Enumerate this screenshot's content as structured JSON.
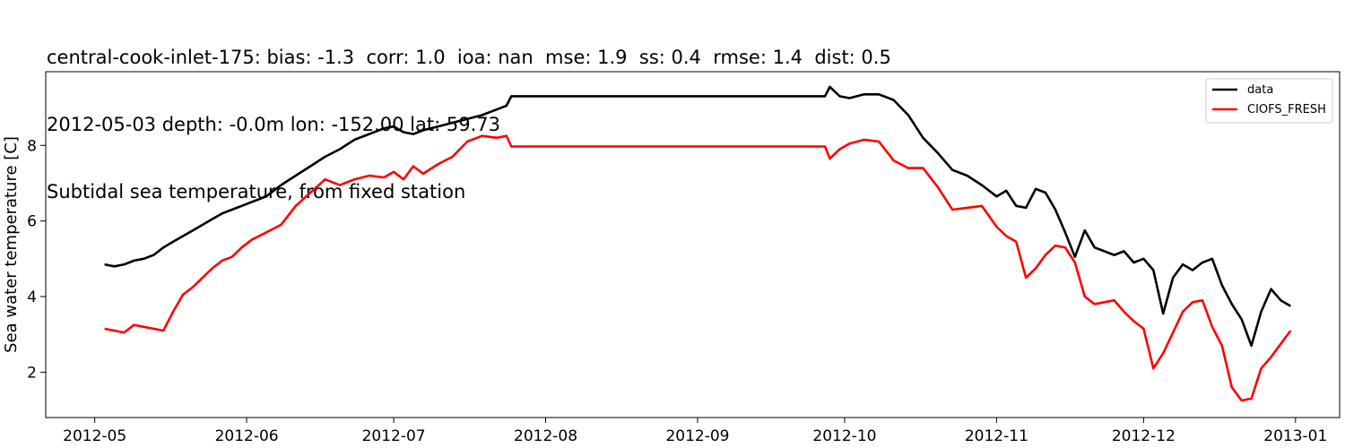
{
  "chart_data": {
    "type": "line",
    "title_lines": [
      "central-cook-inlet-175: bias: -1.3  corr: 1.0  ioa: nan  mse: 1.9  ss: 0.4  rmse: 1.4  dist: 0.5",
      "2012-05-03 depth: -0.0m lon: -152.00 lat: 59.73",
      "Subtidal sea temperature, from fixed station"
    ],
    "xlabel": "",
    "ylabel": "Sea water temperature [C]",
    "x_start": "2012-04-21",
    "x_end": "2013-01-10",
    "xlim": [
      "2012-04-21",
      "2013-01-10"
    ],
    "ylim": [
      0.8,
      9.95
    ],
    "xticks": [
      "2012-05-01",
      "2012-06-01",
      "2012-07-01",
      "2012-08-01",
      "2012-09-01",
      "2012-10-01",
      "2012-11-01",
      "2012-12-01",
      "2013-01-01"
    ],
    "xtick_labels": [
      "2012-05",
      "2012-06",
      "2012-07",
      "2012-08",
      "2012-09",
      "2012-10",
      "2012-11",
      "2012-12",
      "2013-01"
    ],
    "yticks": [
      2,
      4,
      6,
      8
    ],
    "ytick_labels": [
      "2",
      "4",
      "6",
      "8"
    ],
    "grid": false,
    "legend_position": "top-right",
    "series": [
      {
        "name": "data",
        "color": "#000000",
        "x": [
          "2012-05-03",
          "2012-05-05",
          "2012-05-07",
          "2012-05-09",
          "2012-05-11",
          "2012-05-13",
          "2012-05-15",
          "2012-05-17",
          "2012-05-19",
          "2012-05-21",
          "2012-05-23",
          "2012-05-25",
          "2012-05-27",
          "2012-05-29",
          "2012-05-31",
          "2012-06-02",
          "2012-06-05",
          "2012-06-08",
          "2012-06-11",
          "2012-06-14",
          "2012-06-17",
          "2012-06-20",
          "2012-06-23",
          "2012-06-26",
          "2012-06-29",
          "2012-07-01",
          "2012-07-03",
          "2012-07-05",
          "2012-07-07",
          "2012-07-10",
          "2012-07-13",
          "2012-07-16",
          "2012-07-19",
          "2012-07-22",
          "2012-07-24",
          "2012-07-25",
          "2012-08-10",
          "2012-09-01",
          "2012-09-20",
          "2012-09-27",
          "2012-09-28",
          "2012-09-30",
          "2012-10-02",
          "2012-10-05",
          "2012-10-08",
          "2012-10-11",
          "2012-10-14",
          "2012-10-17",
          "2012-10-20",
          "2012-10-23",
          "2012-10-26",
          "2012-10-29",
          "2012-11-01",
          "2012-11-03",
          "2012-11-05",
          "2012-11-07",
          "2012-11-09",
          "2012-11-11",
          "2012-11-13",
          "2012-11-15",
          "2012-11-17",
          "2012-11-19",
          "2012-11-21",
          "2012-11-23",
          "2012-11-25",
          "2012-11-27",
          "2012-11-29",
          "2012-12-01",
          "2012-12-03",
          "2012-12-05",
          "2012-12-07",
          "2012-12-09",
          "2012-12-11",
          "2012-12-13",
          "2012-12-15",
          "2012-12-17",
          "2012-12-19",
          "2012-12-21",
          "2012-12-23",
          "2012-12-25",
          "2012-12-27",
          "2012-12-29",
          "2012-12-31"
        ],
        "y": [
          4.85,
          4.8,
          4.85,
          4.95,
          5.0,
          5.1,
          5.3,
          5.45,
          5.6,
          5.75,
          5.9,
          6.05,
          6.2,
          6.3,
          6.4,
          6.5,
          6.65,
          6.95,
          7.2,
          7.45,
          7.7,
          7.9,
          8.15,
          8.3,
          8.45,
          8.5,
          8.35,
          8.3,
          8.4,
          8.5,
          8.6,
          8.7,
          8.8,
          8.95,
          9.05,
          9.3,
          9.3,
          9.3,
          9.3,
          9.3,
          9.55,
          9.3,
          9.25,
          9.35,
          9.35,
          9.2,
          8.8,
          8.2,
          7.8,
          7.35,
          7.2,
          6.95,
          6.65,
          6.8,
          6.4,
          6.35,
          6.85,
          6.75,
          6.3,
          5.7,
          5.05,
          5.75,
          5.3,
          5.2,
          5.1,
          5.2,
          4.9,
          5.0,
          4.7,
          3.55,
          4.5,
          4.85,
          4.7,
          4.9,
          5.0,
          4.3,
          3.8,
          3.4,
          2.7,
          3.6,
          4.2,
          3.9,
          3.75
        ]
      },
      {
        "name": "CIOFS_FRESH",
        "color": "#ff0000",
        "x": [
          "2012-05-03",
          "2012-05-05",
          "2012-05-07",
          "2012-05-09",
          "2012-05-11",
          "2012-05-13",
          "2012-05-15",
          "2012-05-17",
          "2012-05-19",
          "2012-05-21",
          "2012-05-23",
          "2012-05-25",
          "2012-05-27",
          "2012-05-29",
          "2012-05-31",
          "2012-06-02",
          "2012-06-05",
          "2012-06-08",
          "2012-06-11",
          "2012-06-14",
          "2012-06-17",
          "2012-06-20",
          "2012-06-23",
          "2012-06-26",
          "2012-06-29",
          "2012-07-01",
          "2012-07-03",
          "2012-07-05",
          "2012-07-07",
          "2012-07-10",
          "2012-07-13",
          "2012-07-16",
          "2012-07-19",
          "2012-07-22",
          "2012-07-24",
          "2012-07-25",
          "2012-08-10",
          "2012-09-01",
          "2012-09-20",
          "2012-09-27",
          "2012-09-28",
          "2012-09-30",
          "2012-10-02",
          "2012-10-05",
          "2012-10-08",
          "2012-10-11",
          "2012-10-14",
          "2012-10-17",
          "2012-10-20",
          "2012-10-23",
          "2012-10-26",
          "2012-10-29",
          "2012-11-01",
          "2012-11-03",
          "2012-11-05",
          "2012-11-07",
          "2012-11-09",
          "2012-11-11",
          "2012-11-13",
          "2012-11-15",
          "2012-11-17",
          "2012-11-19",
          "2012-11-21",
          "2012-11-23",
          "2012-11-25",
          "2012-11-27",
          "2012-11-29",
          "2012-12-01",
          "2012-12-03",
          "2012-12-05",
          "2012-12-07",
          "2012-12-09",
          "2012-12-11",
          "2012-12-13",
          "2012-12-15",
          "2012-12-17",
          "2012-12-19",
          "2012-12-21",
          "2012-12-23",
          "2012-12-25",
          "2012-12-27",
          "2012-12-29",
          "2012-12-31"
        ],
        "y": [
          3.15,
          3.1,
          3.05,
          3.25,
          3.2,
          3.15,
          3.1,
          3.6,
          4.05,
          4.25,
          4.5,
          4.75,
          4.95,
          5.05,
          5.3,
          5.5,
          5.7,
          5.9,
          6.4,
          6.75,
          7.1,
          6.95,
          7.1,
          7.2,
          7.15,
          7.3,
          7.1,
          7.45,
          7.25,
          7.5,
          7.7,
          8.1,
          8.25,
          8.2,
          8.25,
          7.97,
          7.97,
          7.97,
          7.97,
          7.97,
          7.65,
          7.9,
          8.05,
          8.15,
          8.1,
          7.6,
          7.4,
          7.4,
          6.9,
          6.3,
          6.35,
          6.4,
          5.85,
          5.6,
          5.45,
          4.5,
          4.75,
          5.1,
          5.35,
          5.3,
          4.9,
          4.0,
          3.8,
          3.85,
          3.9,
          3.6,
          3.35,
          3.15,
          2.1,
          2.5,
          3.05,
          3.6,
          3.85,
          3.9,
          3.2,
          2.7,
          1.6,
          1.25,
          1.3,
          2.1,
          2.4,
          2.75,
          3.1
        ]
      }
    ]
  }
}
